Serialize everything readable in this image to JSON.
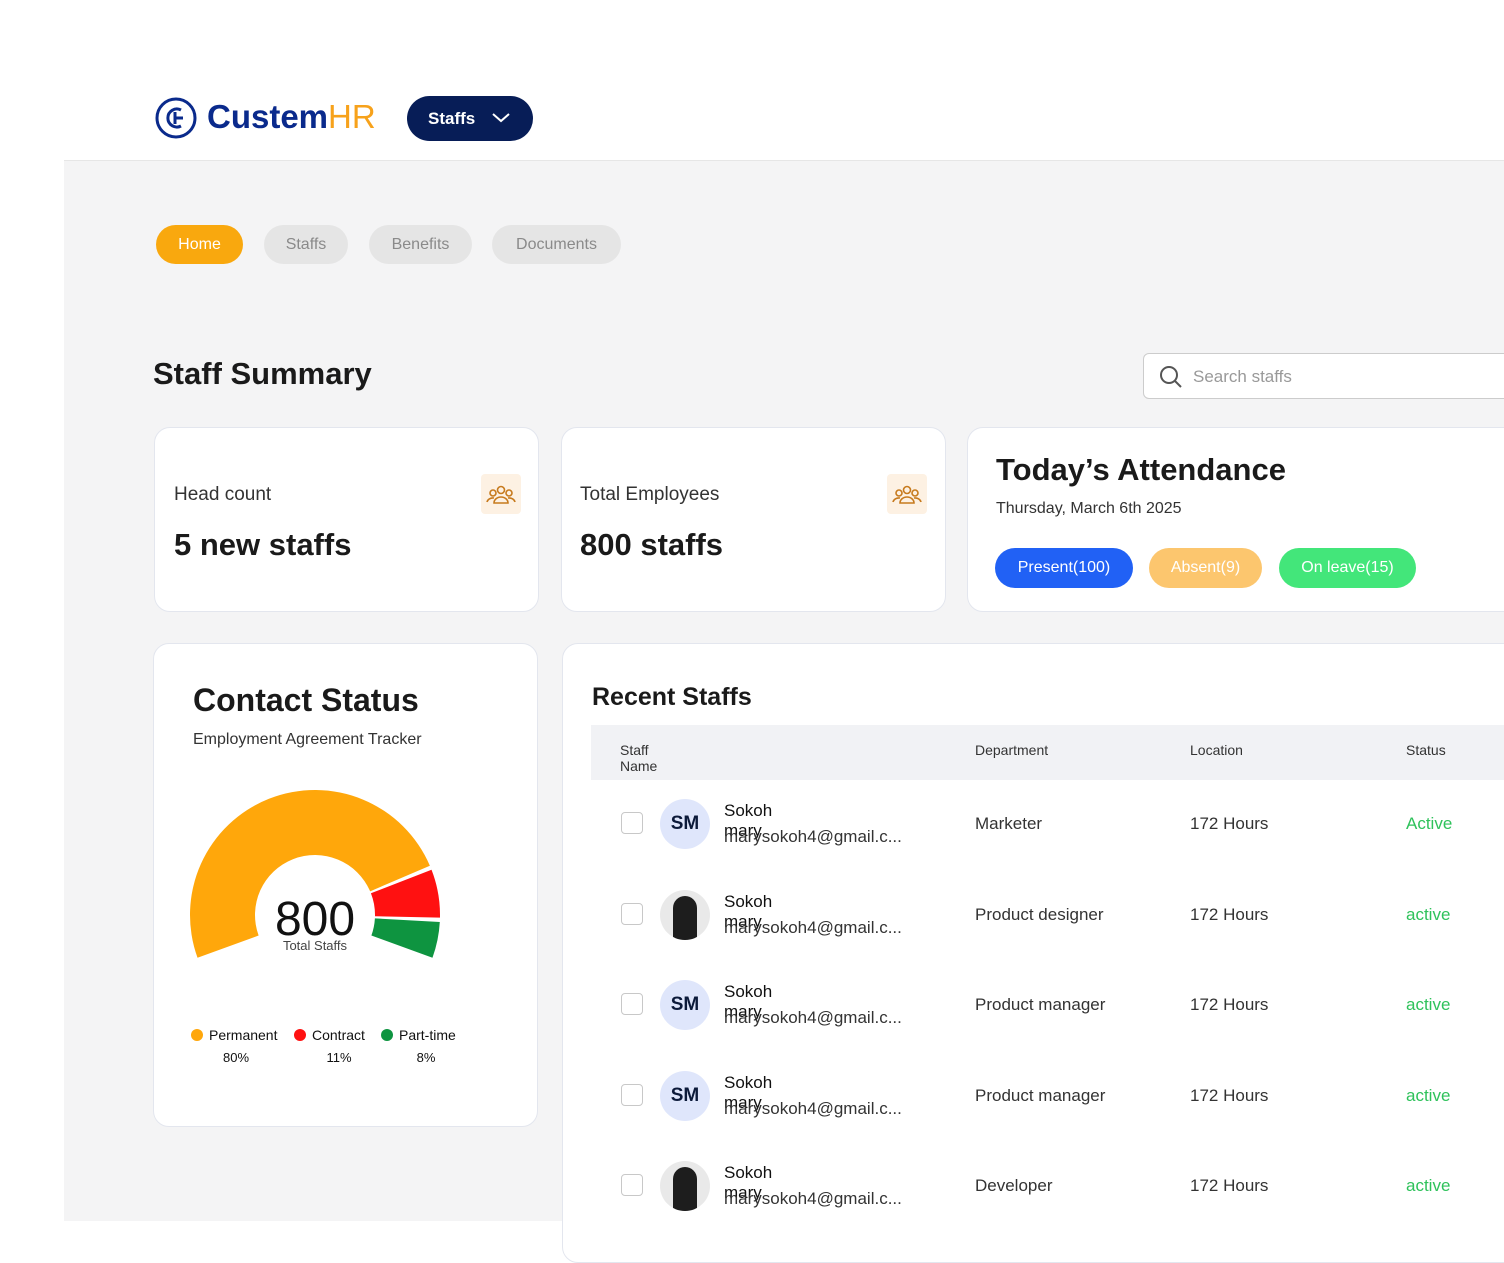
{
  "header": {
    "brand": "Custem",
    "brand_accent": "HR",
    "menu": "Staffs"
  },
  "tabs": [
    "Home",
    "Staffs",
    "Benefits",
    "Documents"
  ],
  "summary": {
    "title": "Staff Summary",
    "search_placeholder": "Search staffs"
  },
  "cards": [
    {
      "label": "Head count",
      "value": "5 new staffs"
    },
    {
      "label": "Total Employees",
      "value": "800 staffs"
    }
  ],
  "attendance": {
    "title": "Today’s Attendance",
    "date": "Thursday, March 6th 2025",
    "badges": [
      "Present(100)",
      "Absent(9)",
      "On leave(15)"
    ]
  },
  "contract_status": {
    "title": "Contact Status",
    "subtitle": "Employment Agreement Tracker",
    "total": 800,
    "total_label": "Total Staffs",
    "names": [
      "Permanent",
      "Contract",
      "Part-time"
    ],
    "values": [
      80,
      11,
      8
    ],
    "value_labels": [
      "80%",
      "11%",
      "8%"
    ],
    "colors": [
      "#FFA70B",
      "#FF1111",
      "#0E9440"
    ]
  },
  "recent_staffs": {
    "title": "Recent Staffs",
    "columns": [
      "Staff Name",
      "Department",
      "Location",
      "Status"
    ],
    "rows": [
      {
        "initials": "SM",
        "name": "Sokoh mary",
        "email": "marysokoh4@gmail.c...",
        "department": "Marketer",
        "location": "172 Hours",
        "status": "Active"
      },
      {
        "name": "Sokoh mary",
        "email": "marysokoh4@gmail.c...",
        "department": "Product designer",
        "location": "172 Hours",
        "status": "active"
      },
      {
        "initials": "SM",
        "name": "Sokoh mary",
        "email": "marysokoh4@gmail.c...",
        "department": "Product manager",
        "location": "172 Hours",
        "status": "active"
      },
      {
        "initials": "SM",
        "name": "Sokoh mary",
        "email": "marysokoh4@gmail.c...",
        "department": "Product manager",
        "location": "172 Hours",
        "status": "active"
      },
      {
        "name": "Sokoh mary",
        "email": "marysokoh4@gmail.c...",
        "department": "Developer",
        "location": "172 Hours",
        "status": "active"
      }
    ]
  }
}
